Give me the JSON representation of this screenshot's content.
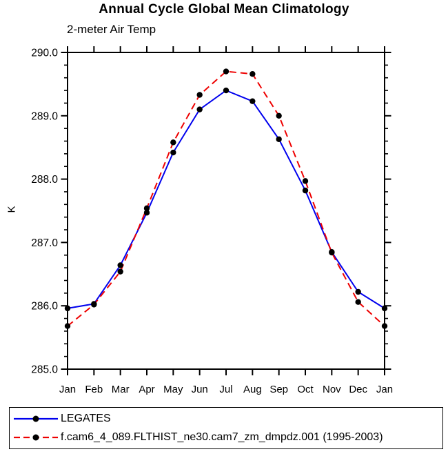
{
  "page": {
    "background": "#ffffff"
  },
  "chart_data": {
    "type": "line",
    "title": "Annual Cycle Global Mean Climatology",
    "subtitle": "2-meter Air Temp",
    "ylabel": "K",
    "x_categories": [
      "Jan",
      "Feb",
      "Mar",
      "Apr",
      "May",
      "Jun",
      "Jul",
      "Aug",
      "Sep",
      "Oct",
      "Nov",
      "Dec",
      "Jan"
    ],
    "ylim": [
      285.0,
      290.0
    ],
    "ytick_step": 1.0,
    "y_minor_step": 0.2,
    "ytick_label_format": "one_decimal",
    "grid": false,
    "legend_position": "bottom",
    "axis_color": "#000000",
    "marker_color": "#000000",
    "series": [
      {
        "name": "LEGATES",
        "color": "#0000ee",
        "line_style": "solid",
        "marker": "filled-circle",
        "values": [
          285.96,
          286.03,
          286.64,
          287.47,
          288.42,
          289.1,
          289.4,
          289.23,
          288.63,
          287.82,
          286.85,
          286.22,
          285.96
        ]
      },
      {
        "name": "f.cam6_4_089.FLTHIST_ne30.cam7_zm_dmpdz.001 (1995-2003)",
        "color": "#ee0000",
        "line_style": "dashed",
        "marker": "filled-circle",
        "values": [
          285.68,
          286.02,
          286.54,
          287.54,
          288.58,
          289.33,
          289.7,
          289.66,
          289.0,
          287.97,
          286.84,
          286.06,
          285.68
        ]
      }
    ]
  }
}
